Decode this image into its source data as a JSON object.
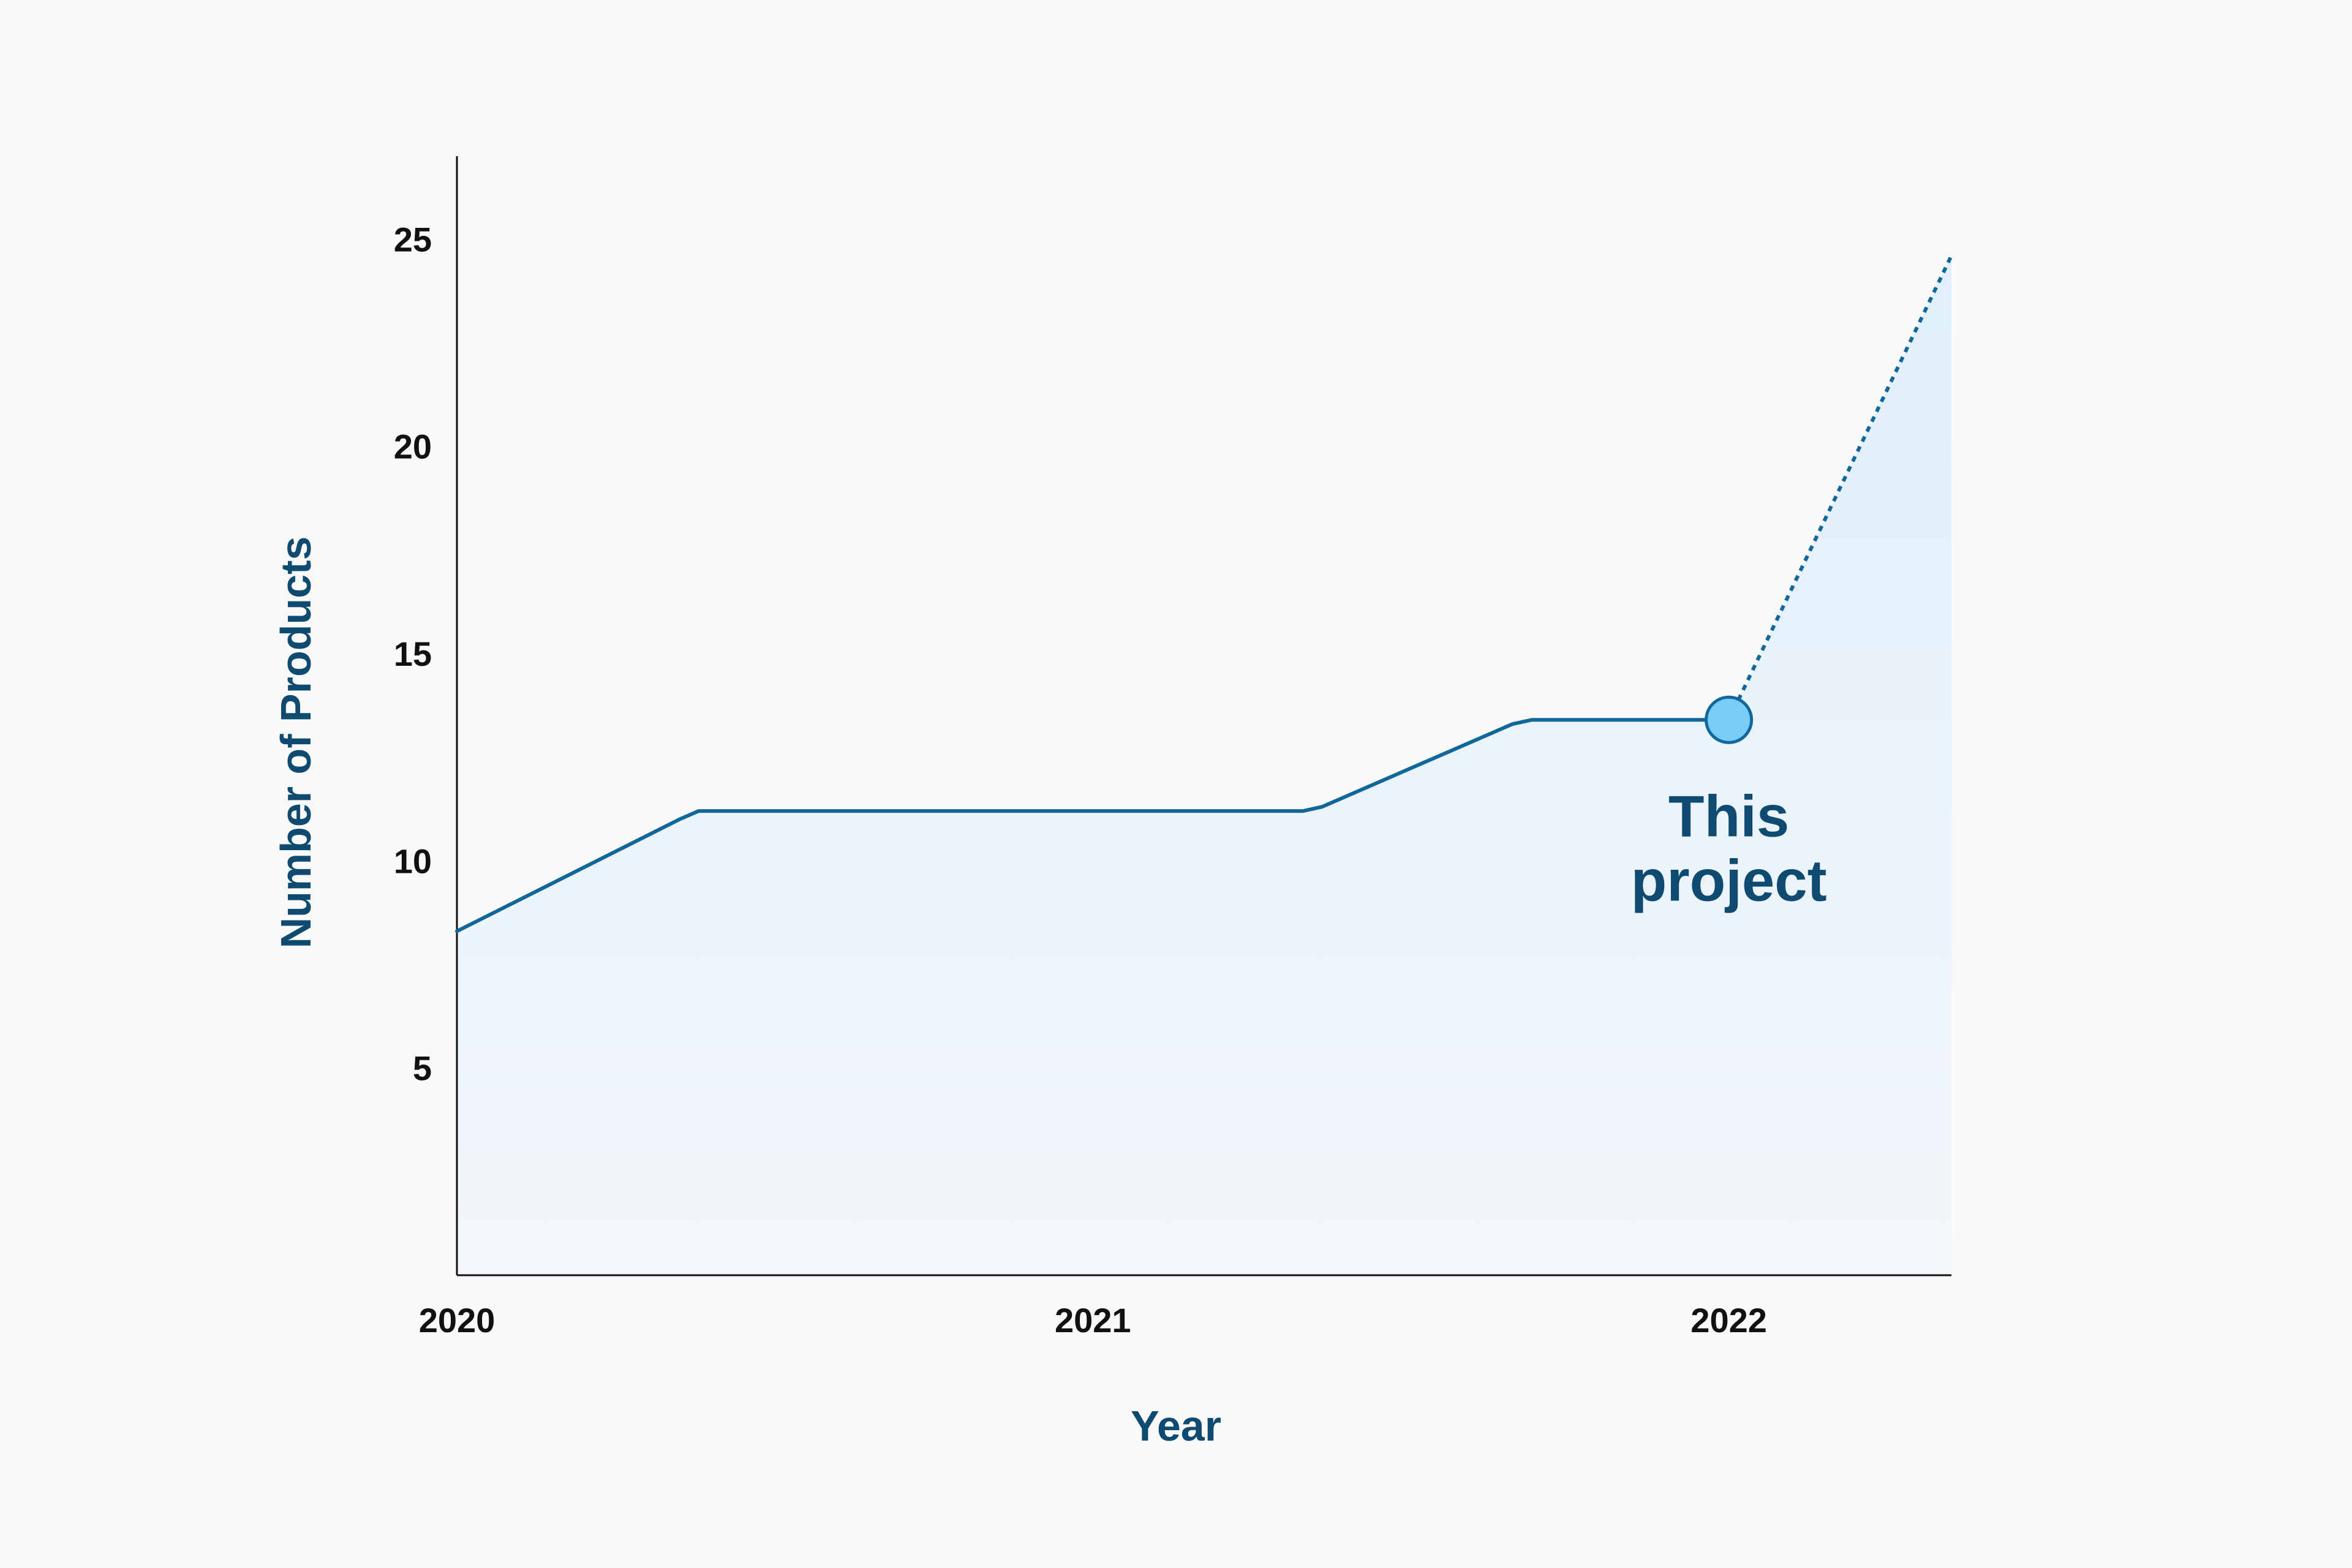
{
  "chart_data": {
    "type": "area",
    "xlabel": "Year",
    "ylabel": "Number of Products",
    "xlim": [
      2020,
      2022.35
    ],
    "ylim": [
      0,
      27
    ],
    "x_ticks": [
      {
        "value": 2020,
        "label": "2020"
      },
      {
        "value": 2021,
        "label": "2021"
      },
      {
        "value": 2022,
        "label": "2022"
      }
    ],
    "y_ticks": [
      {
        "value": 5,
        "label": "5"
      },
      {
        "value": 10,
        "label": "10"
      },
      {
        "value": 15,
        "label": "15"
      },
      {
        "value": 20,
        "label": "20"
      },
      {
        "value": 25,
        "label": "25"
      }
    ],
    "series": [
      {
        "style": "solid",
        "x": [
          2020,
          2020.35,
          2020.38,
          2021.33,
          2021.36,
          2021.66,
          2021.69,
          2022
        ],
        "y": [
          8.3,
          11.0,
          11.2,
          11.2,
          11.3,
          13.3,
          13.4,
          13.4
        ]
      },
      {
        "style": "dashed",
        "x": [
          2022,
          2022.35
        ],
        "y": [
          13.4,
          24.6
        ]
      }
    ],
    "highlight": {
      "x": 2022,
      "y": 13.4,
      "label_lines": [
        "This",
        "project"
      ]
    },
    "grid": false,
    "colors": {
      "line": "#12679a",
      "axis_title": "#0f4a70",
      "annotation": "#0f4a70",
      "marker_fill": "#78ccf8",
      "area_top": "#dfeffb",
      "area_bottom": "#f3f7fb",
      "axis": "#111111"
    }
  }
}
